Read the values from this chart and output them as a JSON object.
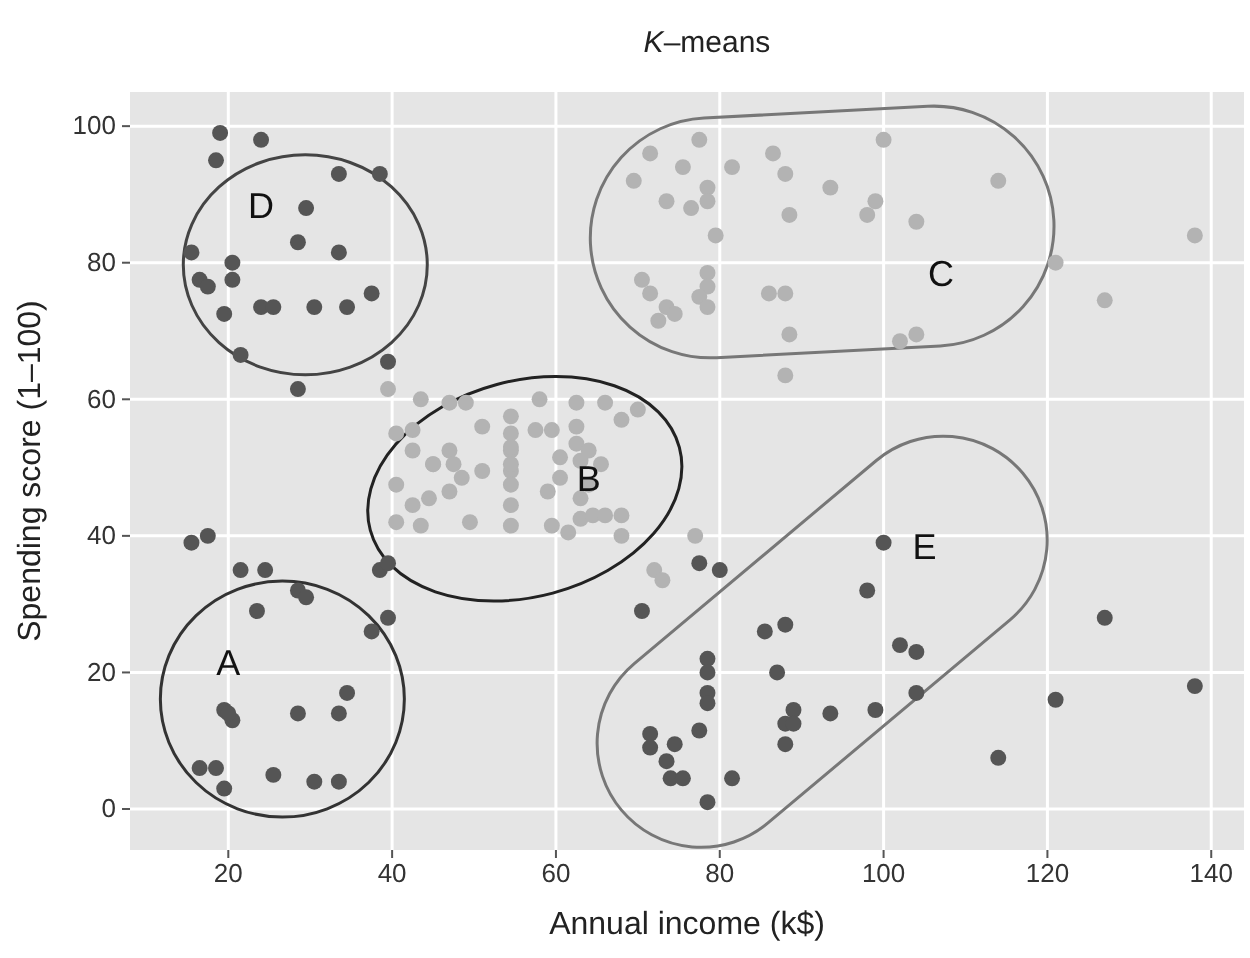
{
  "chart_data": {
    "type": "scatter",
    "title": "K–means",
    "xlabel": "Annual income (k$)",
    "ylabel": "Spending score (1–100)",
    "xlim": [
      8,
      144
    ],
    "ylim": [
      -6,
      105
    ],
    "xticks": [
      20,
      40,
      60,
      80,
      100,
      120,
      140
    ],
    "yticks": [
      0,
      20,
      40,
      60,
      80,
      100
    ],
    "grid": true,
    "marker": "circle",
    "annotations": [
      "A",
      "B",
      "C",
      "D",
      "E"
    ],
    "series": [
      {
        "color": "#555555",
        "x": [
          19,
          24,
          18.5,
          33.5,
          38.5,
          29.5,
          28.5,
          33.5,
          15.5,
          20.5,
          20.5,
          16.5,
          17.5,
          37.5,
          19.5,
          24,
          25.5,
          30.5,
          34.5,
          21.5,
          39.5,
          28.5,
          15.5,
          17.5,
          21.5,
          24.5,
          28.5,
          29.5,
          23.5,
          38.5,
          39.5,
          39.5,
          37.5,
          34.5,
          33.5,
          28.5,
          19.5,
          20.5,
          20,
          16.5,
          18.5,
          19.5,
          25.5,
          30.5,
          33.5,
          77.5,
          80,
          70.5,
          100,
          98,
          85.5,
          88,
          102,
          104,
          78.5,
          78.5,
          87,
          78.5,
          78.5,
          104,
          89,
          88,
          89,
          93.5,
          99,
          77.5,
          71.5,
          71.5,
          74.5,
          73.5,
          74,
          75.5,
          81.5,
          88,
          78.5,
          114,
          121,
          127,
          138
        ],
        "values": [
          99,
          98,
          95,
          93,
          93,
          88,
          83,
          81.5,
          81.5,
          80,
          77.5,
          77.5,
          76.5,
          75.5,
          72.5,
          73.5,
          73.5,
          73.5,
          73.5,
          66.5,
          65.5,
          61.5,
          39,
          40,
          35,
          35,
          32,
          31,
          29,
          35,
          36,
          28,
          26,
          17,
          14,
          14,
          14.5,
          13,
          14,
          6,
          6,
          3,
          5,
          4,
          4,
          36,
          35,
          29,
          39,
          32,
          26,
          27,
          24,
          23,
          22,
          20,
          20,
          17,
          15.5,
          17,
          14.5,
          12.5,
          12.5,
          14,
          14.5,
          11.5,
          11,
          9,
          9.5,
          7,
          4.5,
          4.5,
          4.5,
          9.5,
          1,
          7.5,
          16,
          28,
          18
        ]
      },
      {
        "color": "#b3b3b3",
        "x": [
          39.5,
          43.5,
          47,
          49,
          40.5,
          42.5,
          45,
          51,
          54.5,
          54.5,
          54.5,
          54.5,
          58,
          57.5,
          59.5,
          62.5,
          62.5,
          62.5,
          63,
          66,
          68,
          70,
          40.5,
          42.5,
          45,
          47,
          47.5,
          48.5,
          42.5,
          44.5,
          47,
          40.5,
          43.5,
          49.5,
          51,
          54.5,
          54.5,
          54.5,
          54.5,
          54.5,
          59,
          60.5,
          60.5,
          59.5,
          61.5,
          63,
          64.5,
          66,
          68,
          64,
          65.5,
          64,
          63,
          68,
          77,
          72,
          73,
          77.5,
          71.5,
          75.5,
          81.5,
          86.5,
          88,
          100,
          69.5,
          73.5,
          76.5,
          78.5,
          78.5,
          79.5,
          88.5,
          93.5,
          99,
          98,
          104,
          114,
          138,
          121,
          127,
          70.5,
          71.5,
          73.5,
          74.5,
          72.5,
          78.5,
          78.5,
          77.5,
          78.5,
          86,
          88,
          88.5,
          102,
          104,
          88
        ],
        "values": [
          61.5,
          60,
          59.5,
          59.5,
          55,
          55.5,
          50.5,
          56,
          57.5,
          55,
          52.5,
          49.5,
          60,
          55.5,
          55.5,
          59.5,
          56,
          53.5,
          51,
          59.5,
          57,
          58.5,
          47.5,
          52.5,
          50.5,
          52.5,
          50.5,
          48.5,
          44.5,
          45.5,
          46.5,
          42,
          41.5,
          42,
          49.5,
          53,
          50.5,
          47.5,
          44.5,
          41.5,
          46.5,
          51.5,
          48.5,
          41.5,
          40.5,
          42.5,
          43,
          43,
          43,
          52.5,
          50.5,
          47.5,
          45.5,
          40,
          40,
          35,
          33.5,
          98,
          96,
          94,
          94,
          96,
          93,
          98,
          92,
          89,
          88,
          91,
          89,
          84,
          87,
          91,
          89,
          87,
          86,
          92,
          84,
          80,
          74.5,
          77.5,
          75.5,
          73.5,
          72.5,
          71.5,
          78.5,
          76.5,
          75,
          73.5,
          75.5,
          75.5,
          69.5,
          68.5,
          69.5,
          63.5
        ]
      }
    ]
  }
}
